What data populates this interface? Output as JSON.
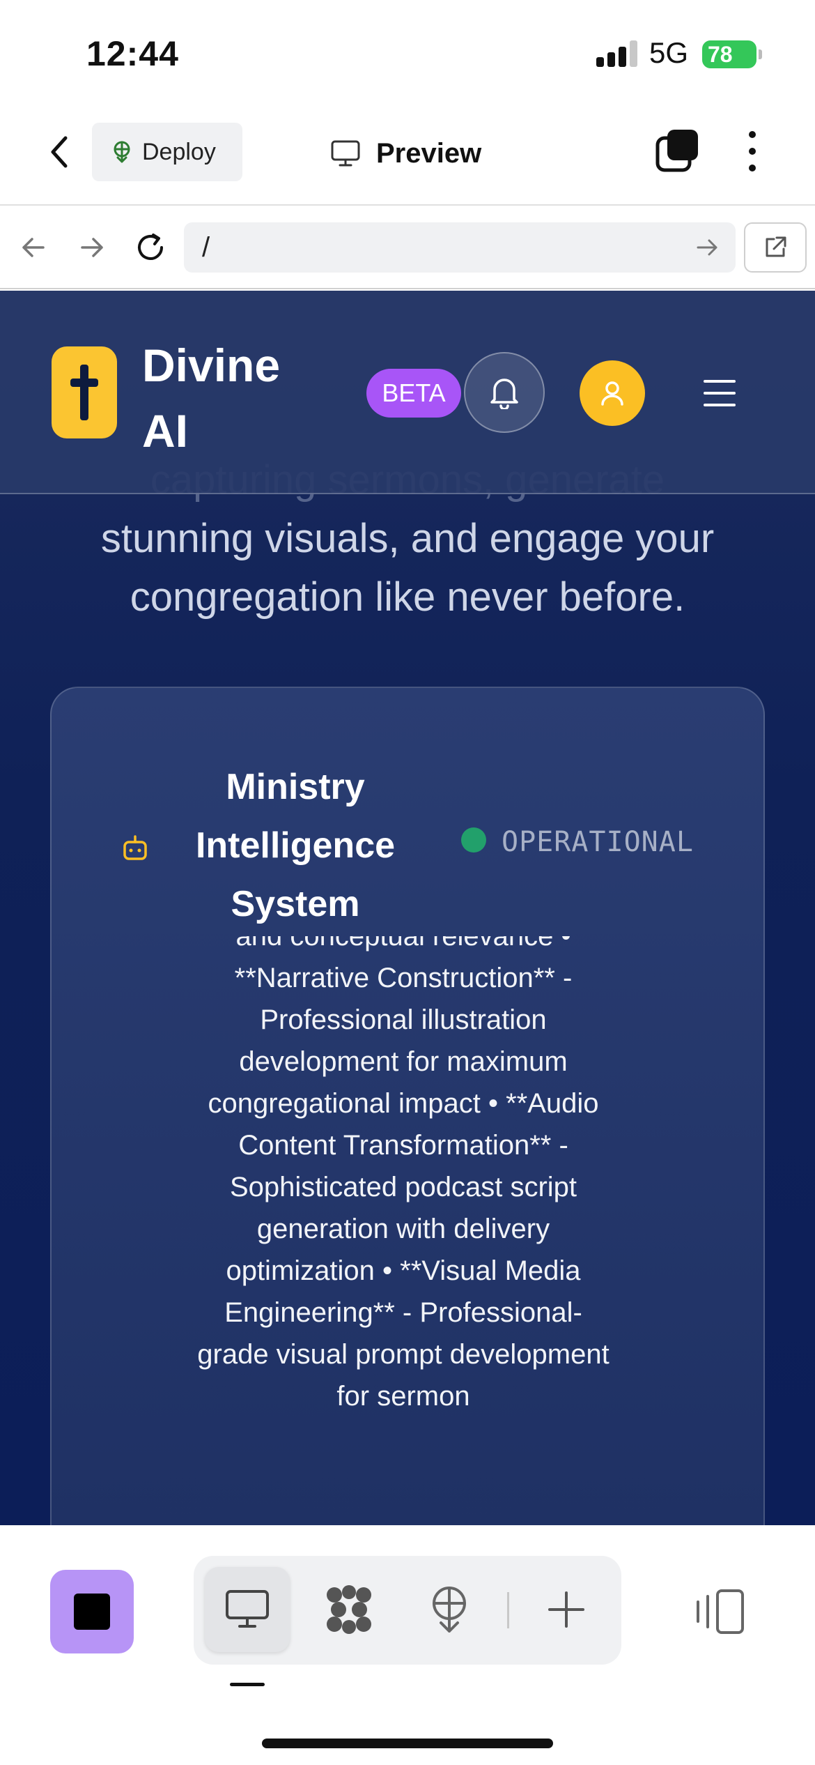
{
  "status_bar": {
    "time": "12:44",
    "network": "5G",
    "battery": "78"
  },
  "top_bar": {
    "deploy_label": "Deploy",
    "preview_label": "Preview"
  },
  "url_bar": {
    "url": "/"
  },
  "site_header": {
    "brand": "Divine AI",
    "badge": "BETA"
  },
  "hero": {
    "faded_line": "capturing sermons, generate",
    "text": "stunning visuals, and engage your congregation like never before."
  },
  "card": {
    "title": "Ministry Intelligence System",
    "status": "OPERATIONAL",
    "status_color": "#22a06b",
    "body": "and conceptual relevance • **Narrative Construction** - Professional illustration development for maximum congregational impact • **Audio Content Transformation** - Sophisticated podcast script generation with delivery optimization • **Visual Media Engineering** - Professional-grade visual prompt development for sermon"
  },
  "bottom_toolbar": {
    "items": [
      "desktop-preview-icon",
      "shapes-icon",
      "deploy-icon",
      "add-icon"
    ]
  },
  "colors": {
    "accent_purple": "#a855f7",
    "logo_yellow": "#fbc531",
    "stop_purple": "#b794f6",
    "page_navy": "#0f2157"
  }
}
